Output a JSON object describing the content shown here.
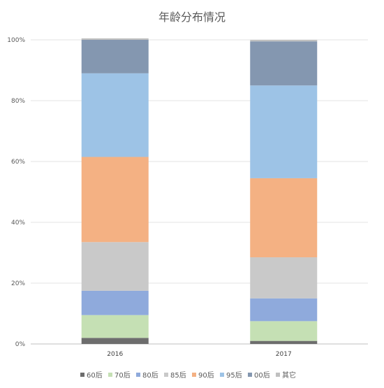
{
  "chart_data": {
    "type": "bar",
    "stacked": true,
    "title": "年龄分布情况",
    "categories": [
      "2016",
      "2017"
    ],
    "ylim": [
      0,
      100
    ],
    "yticks": [
      "0%",
      "20%",
      "40%",
      "60%",
      "80%",
      "100%"
    ],
    "grid": true,
    "legend_position": "bottom",
    "series": [
      {
        "name": "60后",
        "color": "#6d6d6d",
        "values": [
          2,
          1
        ]
      },
      {
        "name": "70后",
        "color": "#c5e0b4",
        "values": [
          7.5,
          6.5
        ]
      },
      {
        "name": "80后",
        "color": "#8faadc",
        "values": [
          8,
          7.5
        ]
      },
      {
        "name": "85后",
        "color": "#c9c9c9",
        "values": [
          16,
          13.5
        ]
      },
      {
        "name": "90后",
        "color": "#f4b183",
        "values": [
          28,
          26
        ]
      },
      {
        "name": "95后",
        "color": "#9dc3e6",
        "values": [
          27.5,
          30.5
        ]
      },
      {
        "name": "00后",
        "color": "#8497b0",
        "values": [
          11,
          14.5
        ]
      },
      {
        "name": "其它",
        "color": "#c0c0c0",
        "values": [
          0.5,
          0.5
        ]
      }
    ]
  }
}
